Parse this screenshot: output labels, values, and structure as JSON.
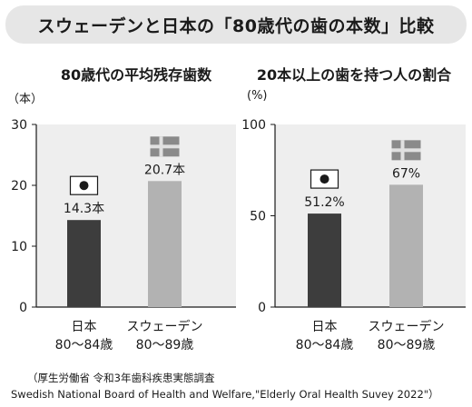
{
  "header": {
    "title": "スウェーデンと日本の「80歳代の歯の本数」比較"
  },
  "chart_data": [
    {
      "type": "bar",
      "title": "80歳代の平均残存歯数",
      "unit": "（本）",
      "categories": [
        [
          "日本",
          "80～84歳"
        ],
        [
          "スウェーデン",
          "80～89歳"
        ]
      ],
      "values": [
        14.3,
        20.7
      ],
      "value_labels": [
        "14.3本",
        "20.7本"
      ],
      "flags": [
        "japan-flag-icon",
        "sweden-flag-icon"
      ],
      "bar_colors": [
        "#3d3d3d",
        "#b2b2b2"
      ],
      "ylim": [
        0,
        30
      ],
      "yticks": [
        0,
        10,
        20,
        30
      ],
      "grid": false
    },
    {
      "type": "bar",
      "title": "20本以上の歯を持つ人の割合",
      "unit": "(%)",
      "categories": [
        [
          "日本",
          "80～84歳"
        ],
        [
          "スウェーデン",
          "80～89歳"
        ]
      ],
      "values": [
        51.2,
        67
      ],
      "value_labels": [
        "51.2%",
        "67%"
      ],
      "flags": [
        "japan-flag-icon",
        "sweden-flag-icon"
      ],
      "bar_colors": [
        "#3d3d3d",
        "#b2b2b2"
      ],
      "ylim": [
        0,
        100
      ],
      "yticks": [
        0,
        50,
        100
      ],
      "grid": false
    }
  ],
  "source": {
    "line1": "（厚生労働省 令和3年歯科疾患実態調査",
    "line2": "Swedish National Board of Health and Welfare,\"Elderly Oral Health Suvey 2022\"）"
  }
}
